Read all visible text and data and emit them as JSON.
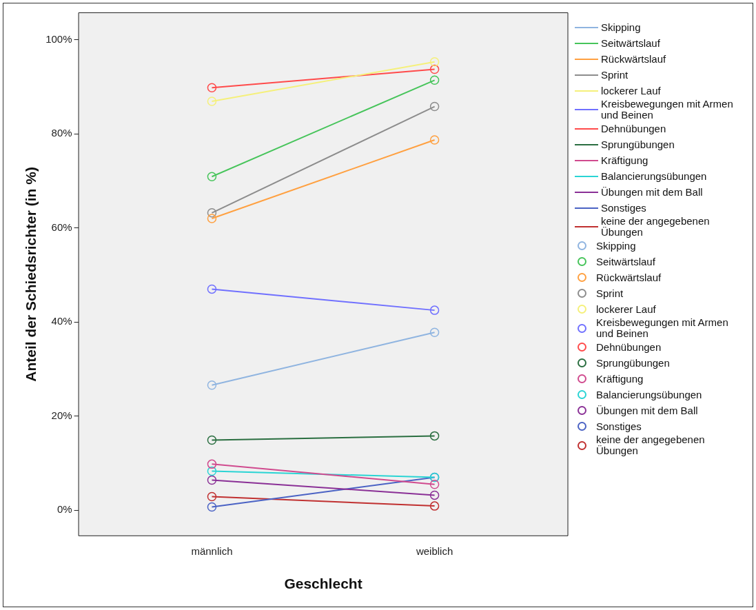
{
  "chart_data": {
    "type": "line",
    "xlabel": "Geschlecht",
    "ylabel": "Anteil der Schiedsrichter (in %)",
    "categories": [
      "männlich",
      "weiblich"
    ],
    "ylim": [
      -5.5,
      105.8
    ],
    "yticks": [
      {
        "value": 0,
        "label": "0%"
      },
      {
        "value": 20,
        "label": "20%"
      },
      {
        "value": 40,
        "label": "40%"
      },
      {
        "value": 60,
        "label": "60%"
      },
      {
        "value": 80,
        "label": "80%"
      },
      {
        "value": 100,
        "label": "100%"
      }
    ],
    "grid": false,
    "legend": "right",
    "marker": "circle",
    "line_style": "solid",
    "series": [
      {
        "name": "Skipping",
        "color": "#8fb4e0",
        "values": [
          26.6,
          37.8
        ]
      },
      {
        "name": "Seitwärtslauf",
        "color": "#46c45a",
        "values": [
          70.9,
          91.4
        ]
      },
      {
        "name": "Rückwärtslauf",
        "color": "#ffa040",
        "values": [
          62.0,
          78.7
        ]
      },
      {
        "name": "Sprint",
        "color": "#8c8c8c",
        "values": [
          63.2,
          85.8
        ]
      },
      {
        "name": "lockerer Lauf",
        "color": "#f5f07a",
        "values": [
          86.9,
          95.3
        ]
      },
      {
        "name": "Kreisbewegungen mit Armen und Beinen",
        "color": "#7070ff",
        "values": [
          47.0,
          42.5
        ]
      },
      {
        "name": "Dehnübungen",
        "color": "#ff4a4a",
        "values": [
          89.8,
          93.7
        ]
      },
      {
        "name": "Sprungübungen",
        "color": "#2a6e40",
        "values": [
          14.9,
          15.8
        ]
      },
      {
        "name": "Kräftigung",
        "color": "#d04a8e",
        "values": [
          9.8,
          5.5
        ]
      },
      {
        "name": "Balancierungsübungen",
        "color": "#2ad4d4",
        "values": [
          8.3,
          7.0
        ]
      },
      {
        "name": "Übungen mit dem Ball",
        "color": "#8a3096",
        "values": [
          6.4,
          3.2
        ]
      },
      {
        "name": "Sonstiges",
        "color": "#4a62c4",
        "values": [
          0.7,
          7.0
        ]
      },
      {
        "name": "keine der angegebenen Übungen",
        "color": "#c03030",
        "values": [
          2.9,
          0.9
        ]
      }
    ]
  }
}
